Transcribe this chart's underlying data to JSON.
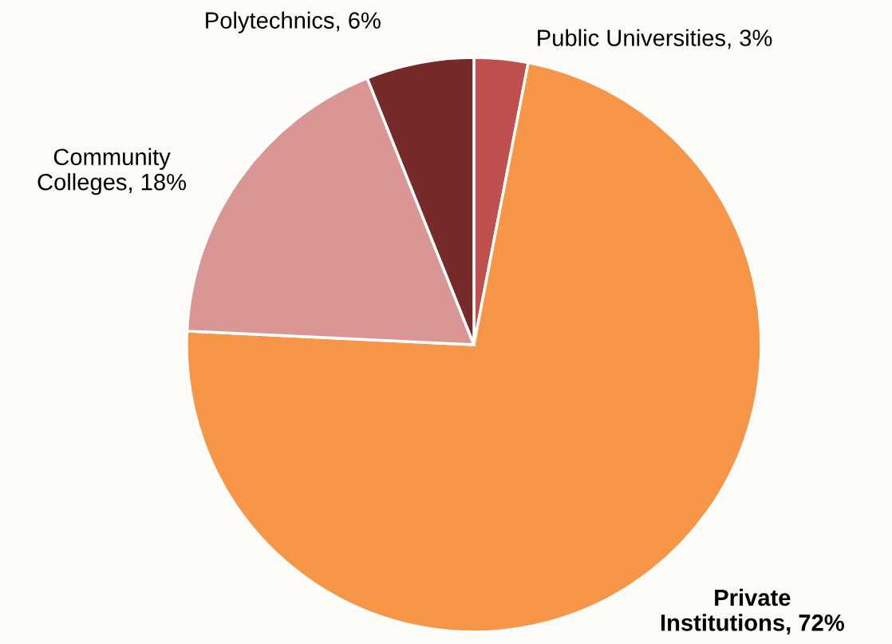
{
  "chart_data": {
    "type": "pie",
    "categories": [
      "Public Universities",
      "Private Institutions",
      "Community Colleges",
      "Polytechnics"
    ],
    "values": [
      3,
      72,
      18,
      6
    ],
    "value_labels": [
      "3%",
      "72%",
      "18%",
      "6%"
    ],
    "colors": [
      "#c0504d",
      "#f79646",
      "#d99694",
      "#772a2a"
    ],
    "legend": false
  }
}
